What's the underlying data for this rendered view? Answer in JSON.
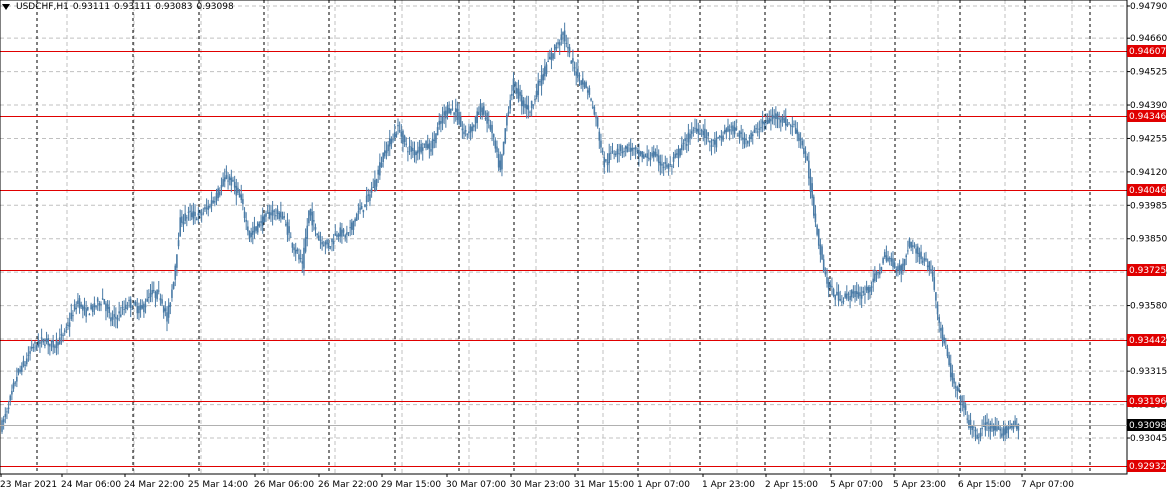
{
  "header": {
    "symbol": "USDCHF,H1",
    "open": "0.93111",
    "high": "0.93111",
    "low": "0.93083",
    "close": "0.93098"
  },
  "colors": {
    "candle": "#4a7ba6",
    "level_line": "#e00000",
    "grid": "#c0c0c0",
    "vline": "#000000",
    "current_price_bg": "#000000"
  },
  "chart_data": {
    "type": "candlestick",
    "symbol": "USDCHF",
    "timeframe": "H1",
    "ylim": [
      0.92932,
      0.9479
    ],
    "price_ticks": [
      "0.94790",
      "0.94660",
      "0.94525",
      "0.94390",
      "0.94255",
      "0.94120",
      "0.93985",
      "0.93850",
      "0.93715",
      "0.93580",
      "0.93445",
      "0.93315",
      "0.93180",
      "0.93045"
    ],
    "time_ticks": [
      "23 Mar 2021",
      "24 Mar 06:00",
      "24 Mar 22:00",
      "25 Mar 14:00",
      "26 Mar 06:00",
      "26 Mar 22:00",
      "29 Mar 15:00",
      "30 Mar 07:00",
      "30 Mar 23:00",
      "31 Mar 15:00",
      "1 Apr 07:00",
      "1 Apr 23:00",
      "2 Apr 15:00",
      "5 Apr 07:00",
      "5 Apr 23:00",
      "6 Apr 15:00",
      "7 Apr 07:00"
    ],
    "levels": [
      "0.94607",
      "0.94346",
      "0.94046",
      "0.93725",
      "0.93442",
      "0.93196",
      "0.92932"
    ],
    "current_price": "0.93098",
    "close_path": [
      [
        0,
        0.931
      ],
      [
        4,
        0.9318
      ],
      [
        9,
        0.933
      ],
      [
        14,
        0.9335
      ],
      [
        18,
        0.9341
      ],
      [
        25,
        0.9344
      ],
      [
        31,
        0.9342
      ],
      [
        36,
        0.9345
      ],
      [
        41,
        0.9352
      ],
      [
        46,
        0.936
      ],
      [
        50,
        0.9355
      ],
      [
        55,
        0.9357
      ],
      [
        61,
        0.9361
      ],
      [
        66,
        0.9352
      ],
      [
        70,
        0.9354
      ],
      [
        77,
        0.9359
      ],
      [
        84,
        0.9356
      ],
      [
        90,
        0.9363
      ],
      [
        96,
        0.9362
      ],
      [
        100,
        0.9352
      ],
      [
        104,
        0.9369
      ],
      [
        108,
        0.9392
      ],
      [
        113,
        0.9395
      ],
      [
        119,
        0.9394
      ],
      [
        125,
        0.9398
      ],
      [
        131,
        0.9404
      ],
      [
        136,
        0.941
      ],
      [
        140,
        0.9407
      ],
      [
        145,
        0.94
      ],
      [
        150,
        0.9386
      ],
      [
        157,
        0.9392
      ],
      [
        163,
        0.9396
      ],
      [
        170,
        0.9394
      ],
      [
        176,
        0.9383
      ],
      [
        182,
        0.9374
      ],
      [
        186,
        0.9396
      ],
      [
        192,
        0.9385
      ],
      [
        198,
        0.9382
      ],
      [
        203,
        0.9388
      ],
      [
        209,
        0.9386
      ],
      [
        215,
        0.9395
      ],
      [
        220,
        0.9399
      ],
      [
        226,
        0.9408
      ],
      [
        231,
        0.9419
      ],
      [
        236,
        0.9425
      ],
      [
        240,
        0.943
      ],
      [
        245,
        0.9422
      ],
      [
        250,
        0.942
      ],
      [
        255,
        0.9423
      ],
      [
        260,
        0.9422
      ],
      [
        265,
        0.9431
      ],
      [
        270,
        0.9438
      ],
      [
        275,
        0.9436
      ],
      [
        280,
        0.9427
      ],
      [
        285,
        0.943
      ],
      [
        290,
        0.9438
      ],
      [
        296,
        0.943
      ],
      [
        302,
        0.9412
      ],
      [
        306,
        0.9435
      ],
      [
        310,
        0.9448
      ],
      [
        315,
        0.944
      ],
      [
        320,
        0.9437
      ],
      [
        325,
        0.9447
      ],
      [
        330,
        0.9455
      ],
      [
        335,
        0.9462
      ],
      [
        340,
        0.9468
      ],
      [
        345,
        0.9456
      ],
      [
        350,
        0.945
      ],
      [
        355,
        0.9445
      ],
      [
        360,
        0.9433
      ],
      [
        365,
        0.9415
      ],
      [
        370,
        0.942
      ],
      [
        375,
        0.9421
      ],
      [
        380,
        0.9422
      ],
      [
        385,
        0.9419
      ],
      [
        390,
        0.9418
      ],
      [
        395,
        0.9419
      ],
      [
        400,
        0.9415
      ],
      [
        405,
        0.9414
      ],
      [
        410,
        0.942
      ],
      [
        415,
        0.9425
      ],
      [
        420,
        0.943
      ],
      [
        425,
        0.9428
      ],
      [
        430,
        0.9423
      ],
      [
        435,
        0.9425
      ],
      [
        440,
        0.943
      ],
      [
        445,
        0.9428
      ],
      [
        450,
        0.9425
      ],
      [
        455,
        0.9427
      ],
      [
        460,
        0.9431
      ],
      [
        465,
        0.9433
      ],
      [
        470,
        0.9435
      ],
      [
        475,
        0.9432
      ],
      [
        480,
        0.943
      ],
      [
        484,
        0.9425
      ],
      [
        488,
        0.9415
      ],
      [
        492,
        0.9396
      ],
      [
        496,
        0.938
      ],
      [
        500,
        0.9367
      ],
      [
        505,
        0.9362
      ],
      [
        510,
        0.9361
      ],
      [
        515,
        0.9363
      ],
      [
        520,
        0.9362
      ],
      [
        525,
        0.9365
      ],
      [
        530,
        0.937
      ],
      [
        535,
        0.9378
      ],
      [
        540,
        0.9375
      ],
      [
        545,
        0.9372
      ],
      [
        550,
        0.9384
      ],
      [
        555,
        0.9379
      ],
      [
        560,
        0.9376
      ],
      [
        564,
        0.937
      ],
      [
        568,
        0.935
      ],
      [
        572,
        0.934
      ],
      [
        576,
        0.9327
      ],
      [
        581,
        0.932
      ],
      [
        586,
        0.931
      ],
      [
        591,
        0.9305
      ],
      [
        596,
        0.931
      ],
      [
        601,
        0.9308
      ],
      [
        606,
        0.9306
      ],
      [
        611,
        0.931
      ],
      [
        616,
        0.9309
      ]
    ]
  }
}
